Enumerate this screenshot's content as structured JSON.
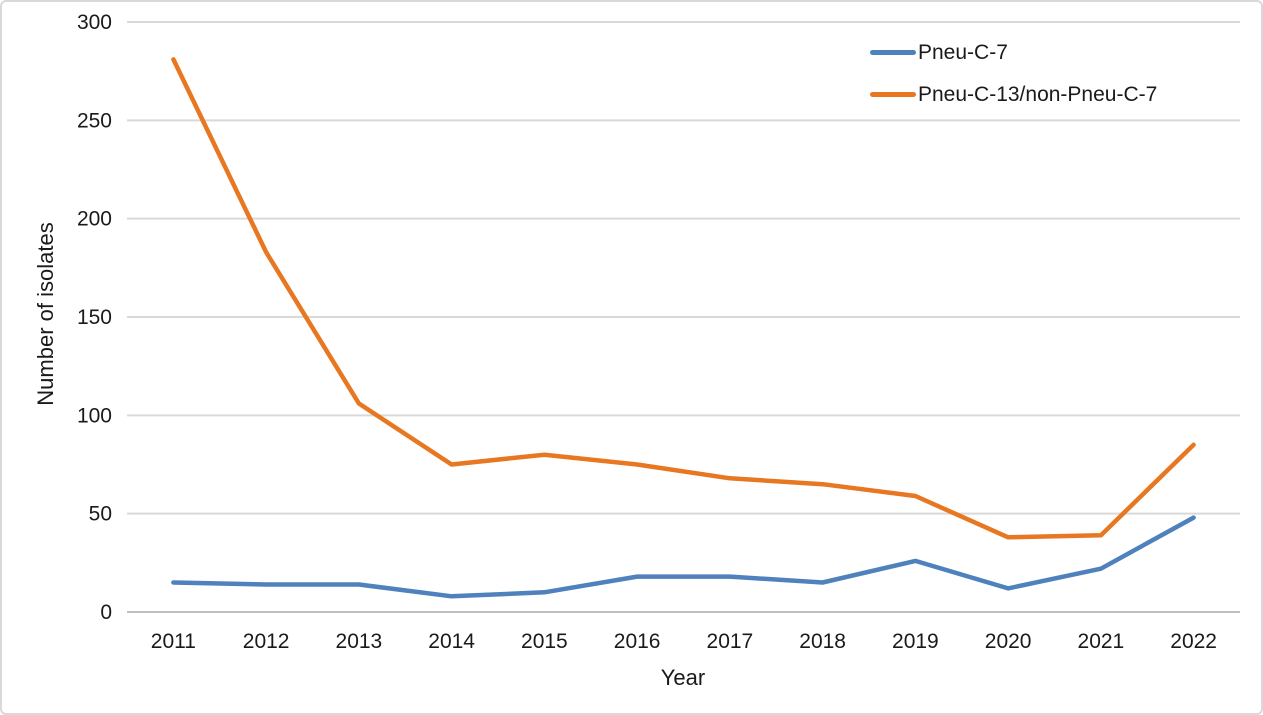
{
  "chart_data": {
    "type": "line",
    "xlabel": "Year",
    "ylabel": "Number of isolates",
    "categories": [
      "2011",
      "2012",
      "2013",
      "2014",
      "2015",
      "2016",
      "2017",
      "2018",
      "2019",
      "2020",
      "2021",
      "2022"
    ],
    "series": [
      {
        "name": "Pneu-C-7",
        "color": "#4F81BD",
        "values": [
          15,
          14,
          14,
          8,
          10,
          18,
          18,
          15,
          26,
          12,
          22,
          48
        ]
      },
      {
        "name": "Pneu-C-13/non-Pneu-C-7",
        "color": "#E87722",
        "values": [
          281,
          183,
          106,
          75,
          80,
          75,
          68,
          65,
          59,
          38,
          39,
          85
        ]
      }
    ],
    "ylim": [
      0,
      300
    ],
    "ytick_step": 50,
    "yticks": [
      0,
      50,
      100,
      150,
      200,
      250,
      300
    ],
    "grid": "horizontal",
    "legend_position": "top-right",
    "colors": {
      "gridline": "#D9D9D9",
      "axis_line": "#BFBFBF",
      "tick_text": "#1a1a1a",
      "background": "#FFFFFF",
      "border": "#D9D9D9"
    }
  }
}
